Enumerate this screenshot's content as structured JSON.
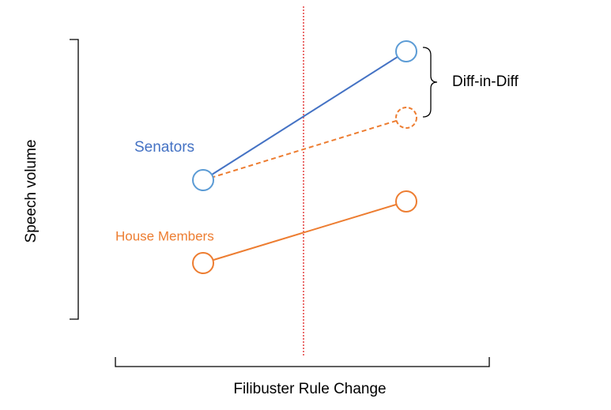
{
  "axis_labels": {
    "y": "Speech volume",
    "x": "Filibuster Rule Change"
  },
  "groups": [
    {
      "label": "Senators"
    },
    {
      "label": "House Members"
    }
  ],
  "annotation": "Diff-in-Diff"
}
